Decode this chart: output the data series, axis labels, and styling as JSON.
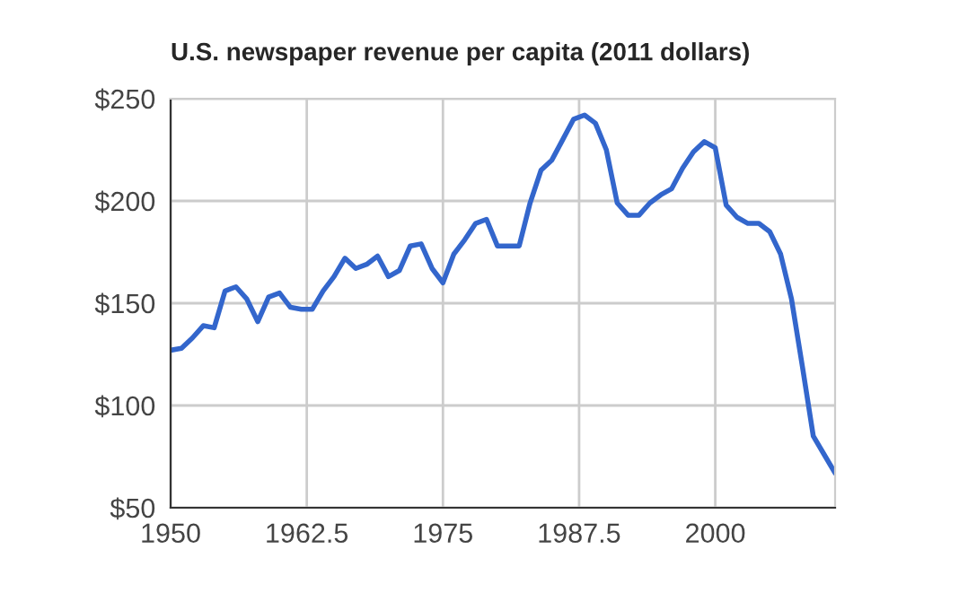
{
  "chart_data": {
    "type": "line",
    "title": "U.S. newspaper revenue per capita (2011 dollars)",
    "x": [
      1950,
      1951,
      1952,
      1953,
      1954,
      1955,
      1956,
      1957,
      1958,
      1959,
      1960,
      1961,
      1962,
      1963,
      1964,
      1965,
      1966,
      1967,
      1968,
      1969,
      1970,
      1971,
      1972,
      1973,
      1974,
      1975,
      1976,
      1977,
      1978,
      1979,
      1980,
      1981,
      1982,
      1983,
      1984,
      1985,
      1986,
      1987,
      1988,
      1989,
      1990,
      1991,
      1992,
      1993,
      1994,
      1995,
      1996,
      1997,
      1998,
      1999,
      2000,
      2001,
      2002,
      2003,
      2004,
      2005,
      2006,
      2007,
      2008,
      2009,
      2010,
      2011
    ],
    "series": [
      {
        "color": "#3366cc",
        "values": [
          127,
          128,
          133,
          139,
          138,
          156,
          158,
          152,
          141,
          153,
          155,
          148,
          147,
          147,
          156,
          163,
          172,
          167,
          169,
          173,
          163,
          166,
          178,
          179,
          167,
          160,
          174,
          181,
          189,
          191,
          178,
          178,
          178,
          199,
          215,
          220,
          230,
          240,
          242,
          238,
          225,
          199,
          193,
          193,
          199,
          203,
          206,
          216,
          224,
          229,
          226,
          198,
          192,
          189,
          189,
          185,
          174,
          152,
          119,
          85,
          76,
          67
        ]
      }
    ],
    "xlim": [
      1950,
      2011
    ],
    "xticks": [
      1950,
      1962.5,
      1975,
      1987.5,
      2000
    ],
    "ylim": [
      50,
      250
    ],
    "yticks": [
      {
        "value": 50,
        "label": "$50"
      },
      {
        "value": 100,
        "label": "$100"
      },
      {
        "value": 150,
        "label": "$150"
      },
      {
        "value": 200,
        "label": "$200"
      },
      {
        "value": 250,
        "label": "$250"
      }
    ],
    "grid": true,
    "marker": "none",
    "line_style": "solid",
    "legend": false
  }
}
